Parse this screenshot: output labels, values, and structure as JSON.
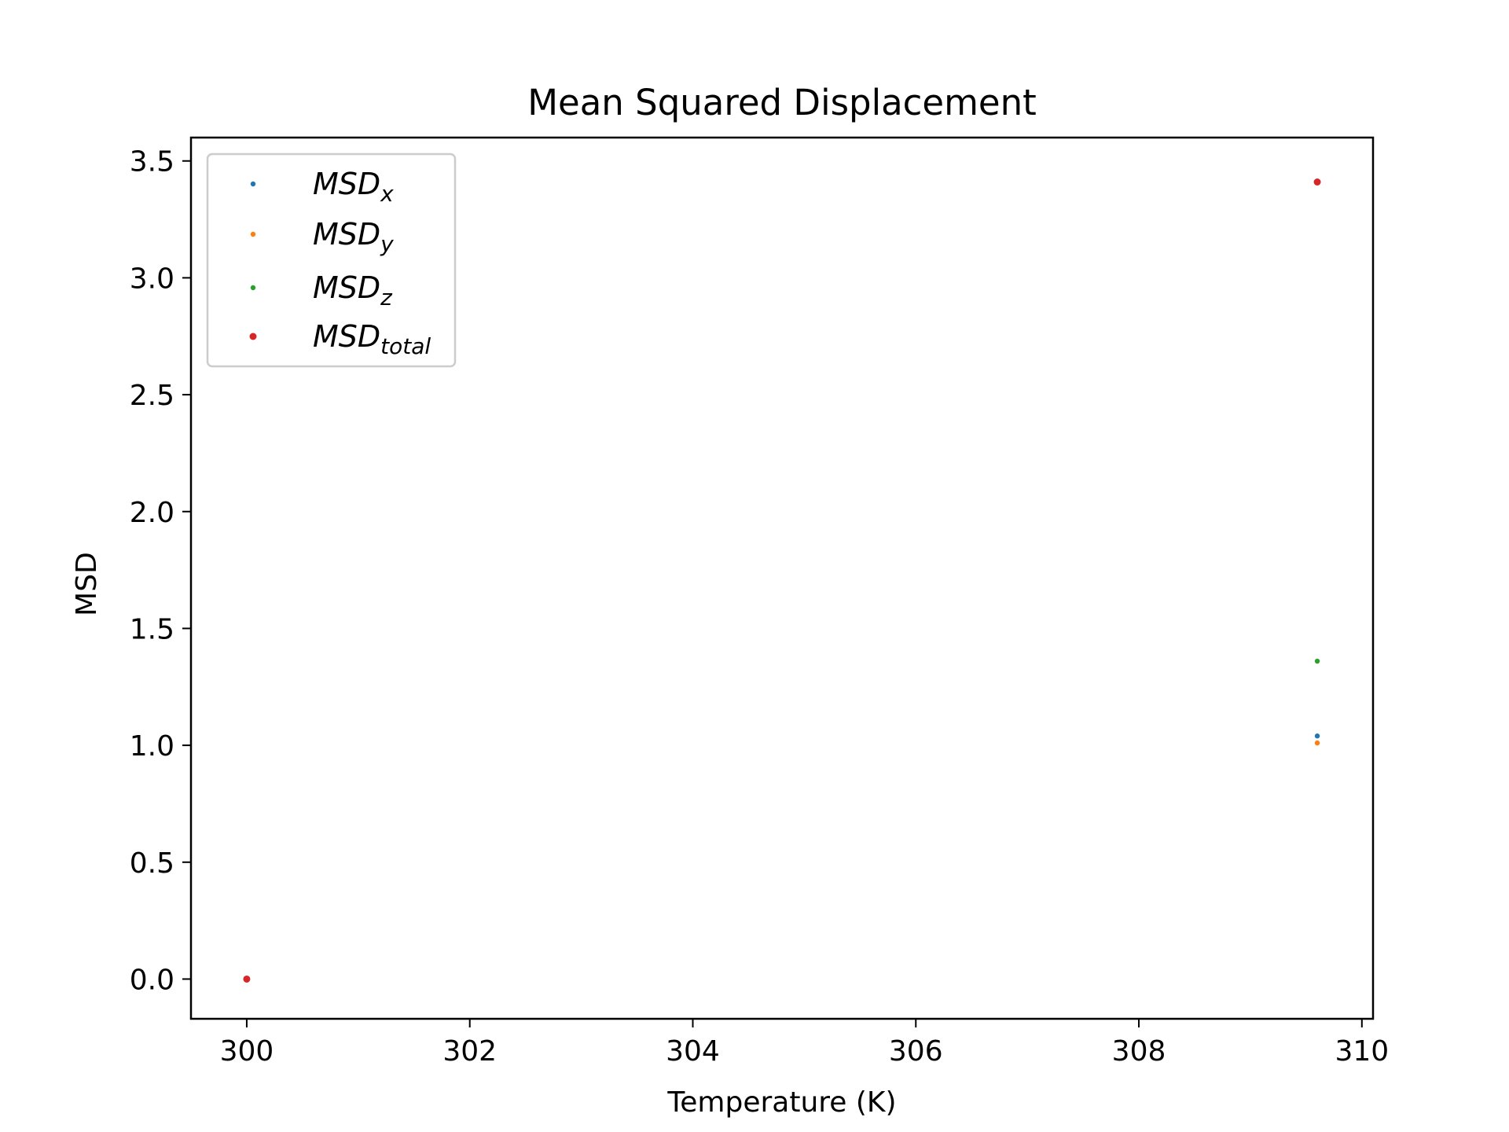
{
  "chart_data": {
    "type": "scatter",
    "title": "Mean Squared Displacement",
    "xlabel": "Temperature (K)",
    "ylabel": "MSD",
    "xlim": [
      299.5,
      310.1
    ],
    "ylim": [
      -0.17,
      3.6
    ],
    "xticks": [
      300,
      302,
      304,
      306,
      308,
      310
    ],
    "xtick_labels": [
      "300",
      "302",
      "304",
      "306",
      "308",
      "310"
    ],
    "yticks": [
      0.0,
      0.5,
      1.0,
      1.5,
      2.0,
      2.5,
      3.0,
      3.5
    ],
    "ytick_labels": [
      "0.0",
      "0.5",
      "1.0",
      "1.5",
      "2.0",
      "2.5",
      "3.0",
      "3.5"
    ],
    "grid": false,
    "legend_position": "top-left",
    "series": [
      {
        "name": "MSD",
        "subscript": "x",
        "color": "#1f77b4",
        "points": [
          [
            300,
            0.0
          ],
          [
            309.6,
            1.04
          ]
        ]
      },
      {
        "name": "MSD",
        "subscript": "y",
        "color": "#ff7f0e",
        "points": [
          [
            300,
            0.0
          ],
          [
            309.6,
            1.01
          ]
        ]
      },
      {
        "name": "MSD",
        "subscript": "z",
        "color": "#2ca02c",
        "points": [
          [
            300,
            0.0
          ],
          [
            309.6,
            1.36
          ]
        ]
      },
      {
        "name": "MSD",
        "subscript": "total",
        "color": "#d62728",
        "points": [
          [
            300,
            0.0
          ],
          [
            309.6,
            3.41
          ]
        ]
      }
    ]
  }
}
